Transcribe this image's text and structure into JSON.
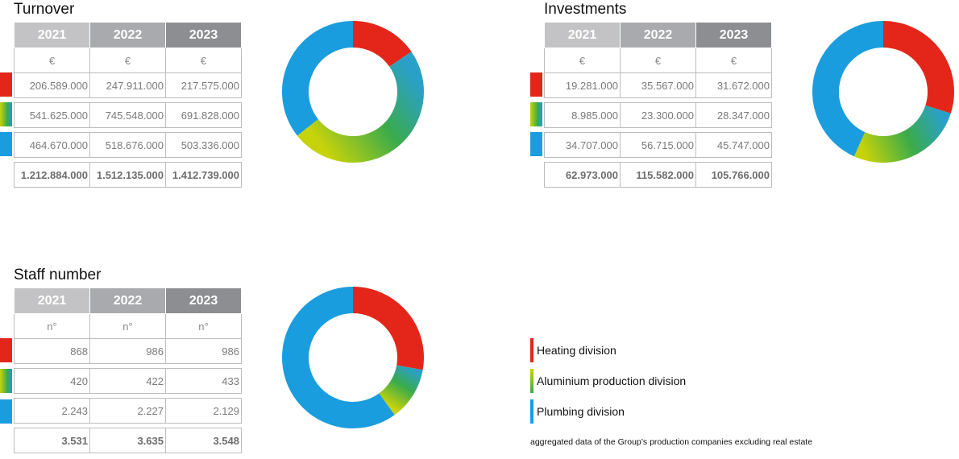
{
  "legend": {
    "items": [
      {
        "label": "Heating division",
        "color": "#e32619"
      },
      {
        "label": "Aluminium production division",
        "color": "#54ae3a"
      },
      {
        "label": "Plumbing division",
        "color": "#1a9ddf"
      }
    ],
    "note": "aggregated data of the Group’s production companies excluding real estate"
  },
  "colors": {
    "heating": "#e32619",
    "aluminium_start": "#c7d30a",
    "aluminium_mid": "#3bab4a",
    "aluminium_end": "#2aa0c8",
    "plumbing": "#1a9ddf"
  },
  "turnover": {
    "title": "Turnover",
    "years": [
      "2021",
      "2022",
      "2023"
    ],
    "unit": "€",
    "rows": [
      [
        "206.589.000",
        "247.911.000",
        "217.575.000"
      ],
      [
        "541.625.000",
        "745.548.000",
        "691.828.000"
      ],
      [
        "464.670.000",
        "518.676.000",
        "503.336.000"
      ]
    ],
    "totals": [
      "1.212.884.000",
      "1.512.135.000",
      "1.412.739.000"
    ]
  },
  "investments": {
    "title": "Investments",
    "years": [
      "2021",
      "2022",
      "2023"
    ],
    "unit": "€",
    "rows": [
      [
        "19.281.000",
        "35.567.000",
        "31.672.000"
      ],
      [
        "8.985.000",
        "23.300.000",
        "28.347.000"
      ],
      [
        "34.707.000",
        "56.715.000",
        "45.747.000"
      ]
    ],
    "totals": [
      "62.973.000",
      "115.582.000",
      "105.766.000"
    ]
  },
  "staff": {
    "title": "Staff number",
    "years": [
      "2021",
      "2022",
      "2023"
    ],
    "unit": "n°",
    "rows": [
      [
        "868",
        "986",
        "986"
      ],
      [
        "420",
        "422",
        "433"
      ],
      [
        "2.243",
        "2.227",
        "2.129"
      ]
    ],
    "totals": [
      "3.531",
      "3.635",
      "3.548"
    ]
  },
  "chart_data": [
    {
      "type": "pie",
      "categories": [
        "Heating division",
        "Aluminium production division",
        "Plumbing division"
      ],
      "values": [
        217575000,
        691828000,
        503336000
      ],
      "title": "Turnover"
    },
    {
      "type": "pie",
      "categories": [
        "Heating division",
        "Aluminium production division",
        "Plumbing division"
      ],
      "values": [
        31672000,
        28347000,
        45747000
      ],
      "title": "Investments"
    },
    {
      "type": "pie",
      "categories": [
        "Heating division",
        "Aluminium production division",
        "Plumbing division"
      ],
      "values": [
        986,
        433,
        2129
      ],
      "title": "Staff number"
    }
  ]
}
